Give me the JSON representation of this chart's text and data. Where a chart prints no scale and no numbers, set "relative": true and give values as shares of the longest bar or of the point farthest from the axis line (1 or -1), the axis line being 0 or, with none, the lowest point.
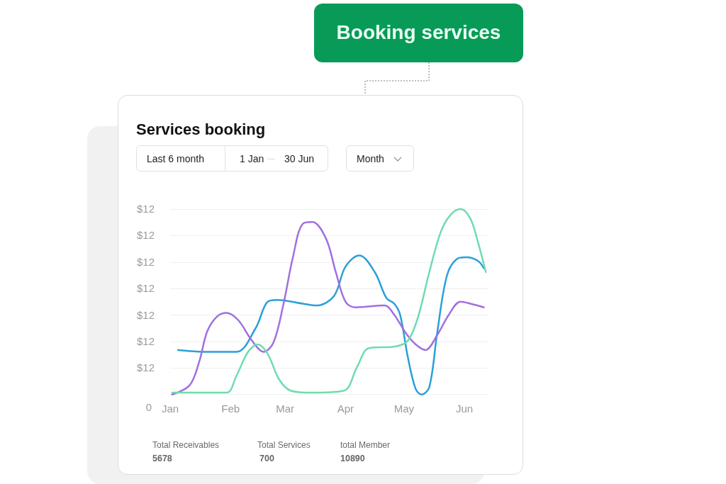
{
  "chart_data": {
    "type": "line",
    "title": "Services booking",
    "relative": true,
    "annotations": [
      "Booking services",
      "Last 6 month",
      "1 Jan",
      "30 Jun",
      "Month",
      "$12",
      "$12",
      "$12",
      "$12",
      "$12",
      "$12",
      "$12",
      "0",
      "Total Receivables",
      "5678",
      "Total Services",
      "700",
      "total Member",
      "10890"
    ],
    "xlim": [
      "--01-01",
      "--06-13"
    ],
    "xticks": [
      {
        "value": "--01-01",
        "label": "Jan"
      },
      {
        "value": "--02-01",
        "label": "Feb"
      },
      {
        "value": "--03-01",
        "label": "Mar"
      },
      {
        "value": "--04-01",
        "label": "Apr"
      },
      {
        "value": "--05-01",
        "label": "May"
      },
      {
        "value": "--06-01",
        "label": "Jun"
      }
    ],
    "grid": "y",
    "marker": "none",
    "line_style": "solid",
    "series": [
      {
        "color": "#2b9fd9",
        "x": [
          "--01-05",
          "--01-20",
          "--02-04",
          "--02-14",
          "--02-20",
          "--02-25",
          "--03-10",
          "--03-17",
          "--03-26",
          "--04-01",
          "--04-08",
          "--04-16",
          "--04-22",
          "--04-26",
          "--04-29",
          "--05-03",
          "--05-07",
          "--05-10",
          "--05-14",
          "--05-18",
          "--05-23",
          "--05-28",
          "--06-02",
          "--06-08",
          "--06-11"
        ],
        "values": [
          0.24,
          0.23,
          0.23,
          0.36,
          0.5,
          0.51,
          0.49,
          0.48,
          0.53,
          0.69,
          0.75,
          0.66,
          0.52,
          0.49,
          0.43,
          0.2,
          0.03,
          0.0,
          0.04,
          0.33,
          0.64,
          0.73,
          0.74,
          0.72,
          0.68
        ]
      },
      {
        "color": "#a070e0",
        "x": [
          "--01-02",
          "--01-11",
          "--01-16",
          "--01-20",
          "--01-25",
          "--01-30",
          "--02-05",
          "--02-12",
          "--02-18",
          "--02-23",
          "--02-28",
          "--03-05",
          "--03-10",
          "--03-15",
          "--03-22",
          "--03-27",
          "--04-01",
          "--04-06",
          "--04-21",
          "--04-26",
          "--05-02",
          "--05-07",
          "--05-12",
          "--05-18",
          "--05-24",
          "--05-30",
          "--06-04",
          "--06-11"
        ],
        "values": [
          0.0,
          0.05,
          0.18,
          0.34,
          0.42,
          0.44,
          0.4,
          0.29,
          0.23,
          0.28,
          0.48,
          0.74,
          0.92,
          0.93,
          0.84,
          0.66,
          0.5,
          0.47,
          0.48,
          0.43,
          0.33,
          0.27,
          0.24,
          0.32,
          0.43,
          0.5,
          0.49,
          0.47
        ]
      },
      {
        "color": "#6fdcae",
        "x": [
          "--01-02",
          "--01-16",
          "--01-30",
          "--02-04",
          "--02-10",
          "--02-15",
          "--02-20",
          "--02-26",
          "--03-04",
          "--03-14",
          "--03-31",
          "--04-07",
          "--04-13",
          "--04-27",
          "--05-03",
          "--05-08",
          "--05-14",
          "--05-20",
          "--05-25",
          "--05-30",
          "--06-04",
          "--06-08",
          "--06-12"
        ],
        "values": [
          0.01,
          0.01,
          0.01,
          0.1,
          0.23,
          0.27,
          0.22,
          0.08,
          0.02,
          0.01,
          0.02,
          0.15,
          0.25,
          0.26,
          0.29,
          0.41,
          0.66,
          0.88,
          0.97,
          1.0,
          0.95,
          0.82,
          0.66
        ]
      }
    ]
  }
}
